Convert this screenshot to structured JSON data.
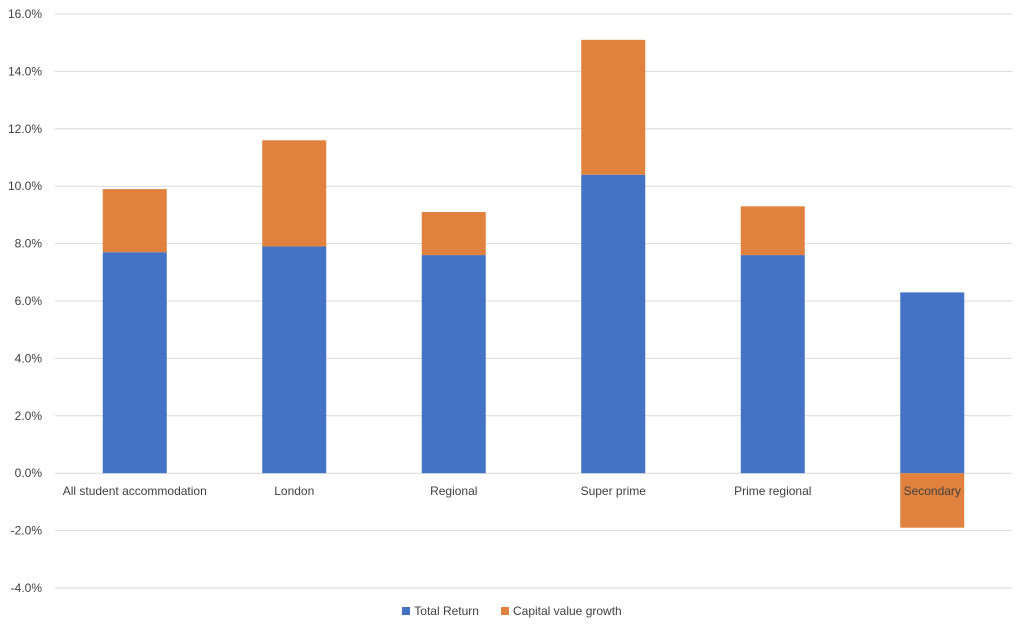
{
  "chart_data": {
    "type": "bar",
    "stacked": true,
    "categories": [
      "All student accommodation",
      "London",
      "Regional",
      "Super prime",
      "Prime regional",
      "Secondary"
    ],
    "series": [
      {
        "name": "Total Return",
        "values": [
          7.7,
          7.9,
          7.6,
          10.4,
          7.6,
          6.3
        ],
        "color": "#4472C4"
      },
      {
        "name": "Capital value growth",
        "values": [
          2.2,
          3.7,
          1.5,
          4.7,
          1.7,
          -1.9
        ],
        "color": "#E0823E"
      }
    ],
    "y_ticks": [
      "-4.0%",
      "-2.0%",
      "0.0%",
      "2.0%",
      "4.0%",
      "6.0%",
      "8.0%",
      "10.0%",
      "12.0%",
      "14.0%",
      "16.0%"
    ],
    "ylim": [
      -4,
      16
    ],
    "grid": true,
    "legend_position": "bottom"
  }
}
